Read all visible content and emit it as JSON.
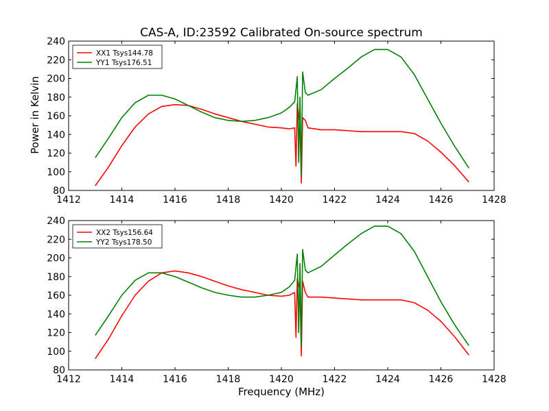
{
  "figure": {
    "title": "CAS-A, ID:23592 Calibrated On-source spectrum",
    "xlabel": "Frequency (MHz)",
    "ylabel": "Power in Kelvin"
  },
  "chart_data": [
    {
      "type": "line",
      "title": "CAS-A, ID:23592 Calibrated On-source spectrum",
      "xlabel": "",
      "ylabel": "Power in Kelvin",
      "xlim": [
        1412,
        1428
      ],
      "ylim": [
        80,
        240
      ],
      "xticks": [
        1412,
        1414,
        1416,
        1418,
        1420,
        1422,
        1424,
        1426,
        1428
      ],
      "yticks": [
        80,
        100,
        120,
        140,
        160,
        180,
        200,
        220,
        240
      ],
      "legend_position": "top-left",
      "grid": false,
      "series": [
        {
          "name": "XX1 Tsys144.78",
          "color": "#ff0000",
          "x": [
            1413.0,
            1413.5,
            1414.0,
            1414.5,
            1415.0,
            1415.5,
            1416.0,
            1416.5,
            1417.0,
            1417.5,
            1418.0,
            1418.5,
            1419.0,
            1419.5,
            1420.0,
            1420.3,
            1420.5,
            1420.55,
            1420.6,
            1420.7,
            1420.75,
            1420.8,
            1420.9,
            1421.0,
            1421.5,
            1422.0,
            1422.5,
            1423.0,
            1423.5,
            1424.0,
            1424.5,
            1425.0,
            1425.5,
            1426.0,
            1426.5,
            1427.05
          ],
          "y": [
            85,
            105,
            128,
            148,
            162,
            170,
            172,
            171,
            167,
            162,
            158,
            154,
            151,
            148,
            147,
            146,
            147,
            106,
            173,
            150,
            88,
            158,
            155,
            147,
            145,
            145,
            144,
            143,
            143,
            143,
            143,
            141,
            133,
            121,
            107,
            89
          ]
        },
        {
          "name": "YY1 Tsys176.51",
          "color": "#008000",
          "x": [
            1413.0,
            1413.5,
            1414.0,
            1414.5,
            1415.0,
            1415.5,
            1416.0,
            1416.5,
            1417.0,
            1417.5,
            1418.0,
            1418.5,
            1419.0,
            1419.5,
            1420.0,
            1420.3,
            1420.5,
            1420.55,
            1420.6,
            1420.65,
            1420.7,
            1420.75,
            1420.8,
            1420.9,
            1421.0,
            1421.5,
            1422.0,
            1422.5,
            1423.0,
            1423.5,
            1424.0,
            1424.5,
            1425.0,
            1425.5,
            1426.0,
            1426.5,
            1427.05
          ],
          "y": [
            115,
            136,
            158,
            174,
            182,
            182,
            178,
            171,
            164,
            158,
            155,
            154,
            155,
            158,
            163,
            169,
            175,
            188,
            202,
            110,
            180,
            95,
            207,
            185,
            182,
            188,
            200,
            211,
            223,
            231,
            231,
            223,
            204,
            178,
            152,
            128,
            104
          ]
        }
      ]
    },
    {
      "type": "line",
      "title": "",
      "xlabel": "Frequency (MHz)",
      "ylabel": "",
      "xlim": [
        1412,
        1428
      ],
      "ylim": [
        80,
        240
      ],
      "xticks": [
        1412,
        1414,
        1416,
        1418,
        1420,
        1422,
        1424,
        1426,
        1428
      ],
      "yticks": [
        80,
        100,
        120,
        140,
        160,
        180,
        200,
        220,
        240
      ],
      "legend_position": "top-left",
      "grid": false,
      "series": [
        {
          "name": "XX2 Tsys156.64",
          "color": "#ff0000",
          "x": [
            1413.0,
            1413.5,
            1414.0,
            1414.5,
            1415.0,
            1415.5,
            1416.0,
            1416.5,
            1417.0,
            1417.5,
            1418.0,
            1418.5,
            1419.0,
            1419.5,
            1420.0,
            1420.3,
            1420.5,
            1420.55,
            1420.6,
            1420.7,
            1420.75,
            1420.8,
            1420.9,
            1421.0,
            1421.5,
            1422.0,
            1422.5,
            1423.0,
            1423.5,
            1424.0,
            1424.5,
            1425.0,
            1425.5,
            1426.0,
            1426.5,
            1427.05
          ],
          "y": [
            92,
            113,
            138,
            160,
            175,
            184,
            186,
            184,
            180,
            175,
            170,
            166,
            163,
            160,
            159,
            160,
            163,
            115,
            178,
            165,
            95,
            175,
            163,
            158,
            158,
            157,
            156,
            155,
            155,
            155,
            155,
            152,
            144,
            132,
            116,
            96
          ]
        },
        {
          "name": "YY2 Tsys178.50",
          "color": "#008000",
          "x": [
            1413.0,
            1413.5,
            1414.0,
            1414.5,
            1415.0,
            1415.5,
            1416.0,
            1416.5,
            1417.0,
            1417.5,
            1418.0,
            1418.5,
            1419.0,
            1419.5,
            1420.0,
            1420.3,
            1420.5,
            1420.55,
            1420.6,
            1420.65,
            1420.7,
            1420.75,
            1420.8,
            1420.9,
            1421.0,
            1421.5,
            1422.0,
            1422.5,
            1423.0,
            1423.5,
            1424.0,
            1424.5,
            1425.0,
            1425.5,
            1426.0,
            1426.5,
            1427.05
          ],
          "y": [
            117,
            138,
            160,
            176,
            184,
            184,
            180,
            174,
            168,
            163,
            160,
            158,
            158,
            160,
            163,
            169,
            176,
            190,
            204,
            120,
            194,
            105,
            209,
            187,
            184,
            191,
            203,
            215,
            226,
            234,
            234,
            226,
            207,
            180,
            153,
            129,
            106
          ]
        }
      ]
    }
  ]
}
